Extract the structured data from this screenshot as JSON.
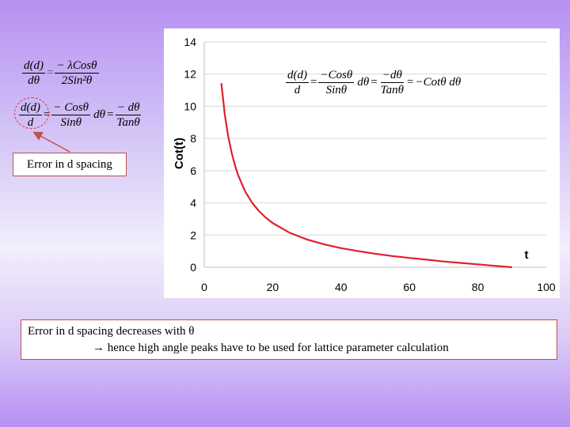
{
  "equations": {
    "eq1": {
      "lhs_num": "d(d)",
      "lhs_den": "dθ",
      "equals": "=",
      "rhs_num": "− λCosθ",
      "rhs_den": "2Sin²θ"
    },
    "eq2": {
      "lhs_num": "d(d)",
      "lhs_den": "d",
      "equals1": "=",
      "t1_num": "− Cosθ",
      "t1_den": "Sinθ",
      "t1_suffix": "dθ",
      "equals2": "=",
      "t2_num": "− dθ",
      "t2_den": "Tanθ"
    },
    "eq3": {
      "lhs_num": "d(d)",
      "lhs_den": "d",
      "equals1": "=",
      "t1_num": "−Cosθ",
      "t1_den": "Sinθ",
      "t1_suffix": "dθ",
      "equals2": "=",
      "t2_num": "−dθ",
      "t2_den": "Tanθ",
      "equals3": "=",
      "t3": "−Cotθ dθ"
    }
  },
  "callout": {
    "label": "Error in d spacing",
    "color": "#c0504d"
  },
  "note": {
    "line1": "Error in d spacing decreases with θ",
    "line2": "→ hence high angle peaks have to be used for lattice parameter calculation"
  },
  "chart_data": {
    "type": "line",
    "title": "",
    "xlabel": "t",
    "ylabel": "Cot(t)",
    "xlim": [
      0,
      100
    ],
    "ylim": [
      0,
      14
    ],
    "x_ticks": [
      0,
      20,
      40,
      60,
      80,
      100
    ],
    "y_ticks": [
      0,
      2,
      4,
      6,
      8,
      10,
      12,
      14
    ],
    "x_tick_labels": [
      "0",
      "20",
      "40",
      "60",
      "80",
      "100"
    ],
    "y_tick_labels": [
      "0",
      "2",
      "4",
      "6",
      "8",
      "10",
      "12",
      "14"
    ],
    "grid": "horizontal",
    "legend": "none",
    "line_color": "#e0202a",
    "series": [
      {
        "x": [
          5,
          6,
          7,
          8,
          9,
          10,
          12,
          14,
          16,
          18,
          20,
          25,
          30,
          35,
          40,
          45,
          50,
          55,
          60,
          65,
          70,
          75,
          80,
          85,
          90
        ],
        "y": [
          11.43,
          9.51,
          8.14,
          7.12,
          6.31,
          5.67,
          4.7,
          4.01,
          3.49,
          3.08,
          2.75,
          2.14,
          1.73,
          1.43,
          1.19,
          1.0,
          0.84,
          0.7,
          0.58,
          0.47,
          0.36,
          0.27,
          0.18,
          0.09,
          0.0
        ]
      }
    ]
  }
}
